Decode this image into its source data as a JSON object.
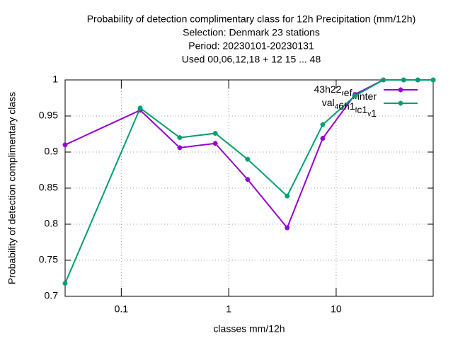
{
  "chart_data": {
    "type": "line",
    "title": [
      "Probability of detection complimentary class  for 12h Precipitation (mm/12h)",
      "Selection: Denmark     23 stations",
      "Period: 20230101-20230131",
      "Used  00,06,12,18  + 12 15 ... 48"
    ],
    "xlabel": "classes mm/12h",
    "ylabel": "Probability of detection complimentary class",
    "x": [
      0.03,
      0.15,
      0.35,
      0.75,
      1.5,
      3.5,
      7.5,
      15,
      27.5,
      42.5,
      57.5,
      80
    ],
    "series": [
      {
        "name": "43h22_ref_winter",
        "color": "#9400d3",
        "values": [
          0.91,
          0.958,
          0.906,
          0.912,
          0.862,
          0.795,
          0.919,
          0.98,
          1,
          1,
          1,
          1
        ]
      },
      {
        "name": "val_46h1_fc1_v1",
        "color": "#009e73",
        "values": [
          0.718,
          0.961,
          0.92,
          0.926,
          0.89,
          0.839,
          0.938,
          0.978,
          1,
          1,
          1,
          1
        ]
      }
    ],
    "xlim": [
      0.03,
      80
    ],
    "xticks": [
      0.1,
      1,
      10
    ],
    "xscale": "log",
    "ylim": [
      0.7,
      1
    ],
    "yticks": [
      0.7,
      0.75,
      0.8,
      0.85,
      0.9,
      0.95,
      1
    ],
    "grid": true,
    "legend": "top-right"
  }
}
